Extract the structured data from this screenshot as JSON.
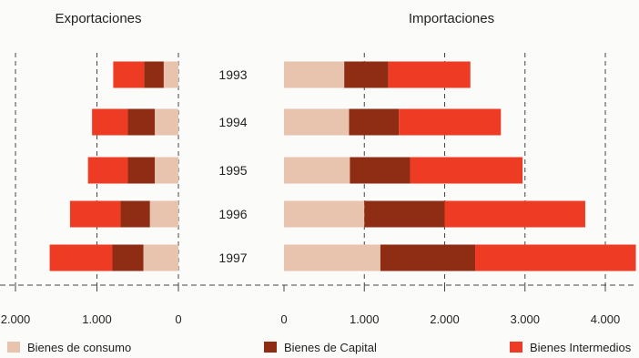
{
  "chart_data": [
    {
      "type": "bar",
      "orientation": "horizontal",
      "stacked": true,
      "x_direction": "reversed",
      "title": "Exportaciones",
      "categories": [
        "1993",
        "1994",
        "1995",
        "1996",
        "1997"
      ],
      "series": [
        {
          "name": "Bienes de consumo",
          "values": [
            180,
            290,
            290,
            350,
            430
          ]
        },
        {
          "name": "Bienes de Capital",
          "values": [
            240,
            330,
            330,
            360,
            380
          ]
        },
        {
          "name": "Bienes Intermedios",
          "values": [
            380,
            440,
            490,
            620,
            770
          ]
        }
      ],
      "xlim": [
        0,
        2000
      ],
      "xticks": [
        0,
        1000,
        2000
      ],
      "xtick_labels": [
        "0",
        "1.000",
        "2.000"
      ],
      "grid": true
    },
    {
      "type": "bar",
      "orientation": "horizontal",
      "stacked": true,
      "title": "Importaciones",
      "categories": [
        "1993",
        "1994",
        "1995",
        "1996",
        "1997"
      ],
      "series": [
        {
          "name": "Bienes de consumo",
          "values": [
            750,
            810,
            820,
            1000,
            1200
          ]
        },
        {
          "name": "Bienes de Capital",
          "values": [
            550,
            620,
            750,
            1000,
            1180
          ]
        },
        {
          "name": "Bienes Intermedios",
          "values": [
            1020,
            1270,
            1400,
            1750,
            2000
          ]
        }
      ],
      "xlim": [
        0,
        4000
      ],
      "xticks": [
        0,
        1000,
        2000,
        3000,
        4000
      ],
      "xtick_labels": [
        "0",
        "1.000",
        "2.000",
        "3.000",
        "4.000"
      ],
      "grid": true
    }
  ],
  "colors": {
    "consumo": "#e8c3ae",
    "capital": "#8e2d14",
    "intermedios": "#ee3b24",
    "grid": "#444444"
  },
  "legend": {
    "consumo": "Bienes de consumo",
    "capital": "Bienes de Capital",
    "intermedios": "Bienes Intermedios"
  }
}
